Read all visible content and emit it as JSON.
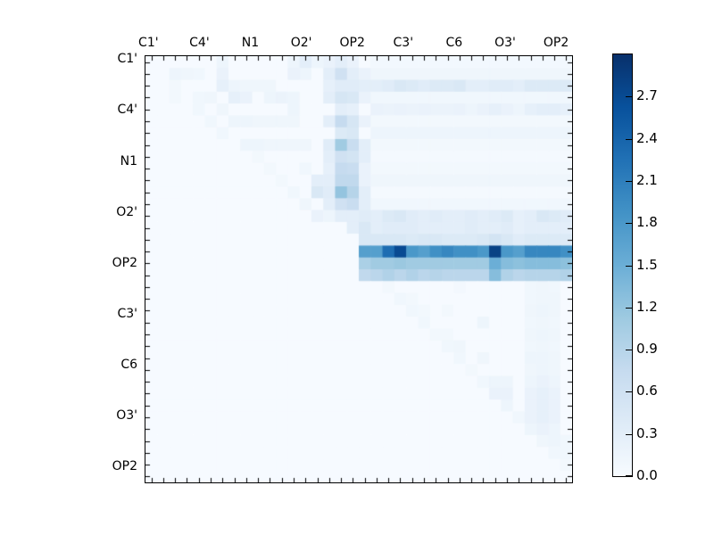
{
  "axes": {
    "x_labels": [
      "C1'",
      "C4'",
      "N1",
      "O2'",
      "OP2",
      "C3'",
      "C6",
      "O3'",
      "OP2"
    ],
    "y_labels": [
      "C1'",
      "C4'",
      "N1",
      "O2'",
      "OP2",
      "C3'",
      "C6",
      "O3'",
      "OP2"
    ],
    "label_positions_cells": [
      0.25,
      4.55,
      8.85,
      13.15,
      17.45,
      21.75,
      26.05,
      30.35,
      34.65
    ]
  },
  "colorbar": {
    "tick_values": [
      0.0,
      0.3,
      0.6,
      0.9,
      1.2,
      1.5,
      1.8,
      2.1,
      2.4,
      2.7
    ],
    "tick_labels": [
      "0.0",
      "0.3",
      "0.6",
      "0.9",
      "1.2",
      "1.5",
      "1.8",
      "2.1",
      "2.4",
      "2.7"
    ],
    "vmin": 0.0,
    "vmax": 3.0,
    "colormap_name": "Blues",
    "colormap_anchors": [
      [
        0.0,
        "#f7fbff"
      ],
      [
        0.125,
        "#deebf7"
      ],
      [
        0.25,
        "#c6dbef"
      ],
      [
        0.375,
        "#9ecae1"
      ],
      [
        0.5,
        "#6baed6"
      ],
      [
        0.625,
        "#4292c6"
      ],
      [
        0.75,
        "#2171b5"
      ],
      [
        0.875,
        "#08519c"
      ],
      [
        1.0,
        "#08306b"
      ]
    ]
  },
  "chart_data": {
    "type": "heatmap",
    "grid_size": 36,
    "vmin": 0.0,
    "vmax": 3.0,
    "colormap": "Blues",
    "axis_tick_labels": [
      "C1'",
      "C4'",
      "N1",
      "O2'",
      "OP2",
      "C3'",
      "C6",
      "O3'",
      "OP2"
    ],
    "note_structure": "upper-triangular matrix; rows/cols 0-35; default background value below",
    "default_value": 0.02,
    "stripes": [
      {
        "row": 0,
        "from": 19,
        "to": 35,
        "value": 0.07
      },
      {
        "row": 1,
        "from": 18,
        "to": 35,
        "value": 0.12
      },
      {
        "row": 2,
        "from": 18,
        "values": [
          0.3,
          0.3,
          0.35,
          0.45,
          0.4,
          0.35,
          0.4,
          0.4,
          0.45,
          0.3,
          0.3,
          0.35,
          0.35,
          0.3,
          0.4,
          0.4,
          0.4,
          0.4
        ]
      },
      {
        "row": 3,
        "from": 19,
        "to": 35,
        "value": 0.1
      },
      {
        "row": 4,
        "from": 19,
        "values": [
          0.2,
          0.18,
          0.2,
          0.18,
          0.2,
          0.18,
          0.18,
          0.2,
          0.15,
          0.2,
          0.25,
          0.2,
          0.15,
          0.25,
          0.3,
          0.3,
          0.25
        ]
      },
      {
        "row": 5,
        "from": 19,
        "to": 35,
        "value": 0.08
      },
      {
        "row": 6,
        "from": 19,
        "to": 35,
        "value": 0.15
      },
      {
        "row": 7,
        "from": 19,
        "to": 35,
        "value": 0.08
      },
      {
        "row": 8,
        "from": 19,
        "to": 35,
        "value": 0.05
      },
      {
        "row": 9,
        "from": 19,
        "to": 35,
        "value": 0.08
      },
      {
        "row": 10,
        "from": 19,
        "to": 35,
        "value": 0.12
      },
      {
        "row": 11,
        "from": 19,
        "to": 35,
        "value": 0.05
      },
      {
        "row": 12,
        "from": 19,
        "to": 35,
        "value": 0.1
      },
      {
        "row": 13,
        "from": 17,
        "values": [
          0.3,
          0.35,
          0.3,
          0.4,
          0.45,
          0.35,
          0.3,
          0.35,
          0.3,
          0.3,
          0.35,
          0.3,
          0.35,
          0.4,
          0.25,
          0.3,
          0.45,
          0.4,
          0.35
        ]
      },
      {
        "row": 14,
        "from": 18,
        "values": [
          0.3,
          0.3,
          0.35,
          0.35,
          0.35,
          0.3,
          0.3,
          0.3,
          0.3,
          0.35,
          0.3,
          0.3,
          0.35,
          0.25,
          0.3,
          0.3,
          0.3,
          0.3
        ]
      },
      {
        "row": 15,
        "from": 18,
        "values": [
          0.45,
          0.45,
          0.45,
          0.45,
          0.4,
          0.45,
          0.45,
          0.4,
          0.4,
          0.4,
          0.45,
          0.55,
          0.45,
          0.35,
          0.4,
          0.4,
          0.4,
          0.4
        ]
      },
      {
        "row": 16,
        "from": 18,
        "values": [
          1.7,
          1.7,
          2.3,
          2.7,
          1.8,
          1.7,
          1.9,
          2.0,
          1.9,
          1.9,
          1.8,
          2.8,
          1.8,
          1.7,
          2.0,
          2.0,
          2.0,
          1.9
        ]
      },
      {
        "row": 17,
        "from": 18,
        "values": [
          1.0,
          1.1,
          1.1,
          1.15,
          1.1,
          1.1,
          1.1,
          1.1,
          1.1,
          1.1,
          1.1,
          1.5,
          1.3,
          1.25,
          1.3,
          1.3,
          1.3,
          1.25
        ]
      },
      {
        "row": 18,
        "from": 18,
        "values": [
          0.8,
          0.85,
          0.95,
          0.85,
          0.95,
          0.85,
          0.9,
          0.85,
          0.85,
          0.85,
          0.85,
          1.3,
          0.95,
          0.85,
          0.9,
          0.9,
          0.9,
          0.95
        ]
      }
    ],
    "cells": [
      [
        0,
        6,
        0.15
      ],
      [
        0,
        12,
        0.15
      ],
      [
        0,
        13,
        0.3
      ],
      [
        0,
        14,
        0.15
      ],
      [
        0,
        15,
        0.2
      ],
      [
        0,
        16,
        0.3
      ],
      [
        0,
        17,
        0.2
      ],
      [
        1,
        2,
        0.15
      ],
      [
        1,
        3,
        0.12
      ],
      [
        1,
        4,
        0.1
      ],
      [
        1,
        6,
        0.2
      ],
      [
        1,
        12,
        0.2
      ],
      [
        1,
        13,
        0.15
      ],
      [
        1,
        15,
        0.3
      ],
      [
        1,
        16,
        0.6
      ],
      [
        1,
        17,
        0.3
      ],
      [
        1,
        18,
        0.2
      ],
      [
        2,
        2,
        0.08
      ],
      [
        2,
        6,
        0.25
      ],
      [
        2,
        7,
        0.15
      ],
      [
        2,
        8,
        0.12
      ],
      [
        2,
        9,
        0.12
      ],
      [
        2,
        10,
        0.12
      ],
      [
        2,
        15,
        0.25
      ],
      [
        2,
        16,
        0.35
      ],
      [
        2,
        17,
        0.35
      ],
      [
        3,
        2,
        0.08
      ],
      [
        3,
        4,
        0.1
      ],
      [
        3,
        5,
        0.12
      ],
      [
        3,
        7,
        0.25
      ],
      [
        3,
        8,
        0.2
      ],
      [
        3,
        10,
        0.15
      ],
      [
        3,
        11,
        0.18
      ],
      [
        3,
        12,
        0.15
      ],
      [
        3,
        15,
        0.3
      ],
      [
        3,
        16,
        0.5
      ],
      [
        3,
        17,
        0.45
      ],
      [
        3,
        18,
        0.2
      ],
      [
        4,
        4,
        0.1
      ],
      [
        4,
        6,
        0.12
      ],
      [
        4,
        12,
        0.15
      ],
      [
        4,
        16,
        0.3
      ],
      [
        4,
        17,
        0.25
      ],
      [
        5,
        5,
        0.1
      ],
      [
        5,
        7,
        0.15
      ],
      [
        5,
        8,
        0.15
      ],
      [
        5,
        9,
        0.12
      ],
      [
        5,
        10,
        0.12
      ],
      [
        5,
        11,
        0.12
      ],
      [
        5,
        12,
        0.12
      ],
      [
        5,
        15,
        0.3
      ],
      [
        5,
        16,
        0.75
      ],
      [
        5,
        17,
        0.5
      ],
      [
        5,
        18,
        0.2
      ],
      [
        6,
        6,
        0.1
      ],
      [
        6,
        16,
        0.4
      ],
      [
        6,
        17,
        0.45
      ],
      [
        7,
        8,
        0.15
      ],
      [
        7,
        9,
        0.15
      ],
      [
        7,
        10,
        0.12
      ],
      [
        7,
        11,
        0.12
      ],
      [
        7,
        12,
        0.12
      ],
      [
        7,
        13,
        0.12
      ],
      [
        7,
        15,
        0.35
      ],
      [
        7,
        16,
        1.1
      ],
      [
        7,
        17,
        0.7
      ],
      [
        7,
        18,
        0.3
      ],
      [
        8,
        9,
        0.08
      ],
      [
        8,
        15,
        0.3
      ],
      [
        8,
        16,
        0.6
      ],
      [
        8,
        17,
        0.55
      ],
      [
        8,
        18,
        0.3
      ],
      [
        9,
        10,
        0.08
      ],
      [
        9,
        13,
        0.1
      ],
      [
        9,
        15,
        0.25
      ],
      [
        9,
        16,
        0.75
      ],
      [
        9,
        17,
        0.7
      ],
      [
        9,
        18,
        0.2
      ],
      [
        10,
        11,
        0.08
      ],
      [
        10,
        14,
        0.3
      ],
      [
        10,
        15,
        0.3
      ],
      [
        10,
        16,
        0.8
      ],
      [
        10,
        17,
        0.8
      ],
      [
        10,
        18,
        0.2
      ],
      [
        11,
        12,
        0.1
      ],
      [
        11,
        14,
        0.45
      ],
      [
        11,
        15,
        0.35
      ],
      [
        11,
        16,
        1.2
      ],
      [
        11,
        17,
        0.9
      ],
      [
        11,
        18,
        0.3
      ],
      [
        12,
        13,
        0.12
      ],
      [
        12,
        15,
        0.3
      ],
      [
        12,
        16,
        0.6
      ],
      [
        12,
        17,
        0.7
      ],
      [
        12,
        18,
        0.3
      ],
      [
        13,
        14,
        0.2
      ],
      [
        13,
        15,
        0.15
      ],
      [
        13,
        16,
        0.3
      ],
      [
        14,
        17,
        0.3
      ],
      [
        14,
        18,
        0.45
      ],
      [
        19,
        20,
        0.08
      ],
      [
        19,
        26,
        0.06
      ],
      [
        19,
        32,
        0.1
      ],
      [
        19,
        33,
        0.12
      ],
      [
        19,
        34,
        0.1
      ],
      [
        20,
        21,
        0.1
      ],
      [
        20,
        22,
        0.08
      ],
      [
        20,
        32,
        0.1
      ],
      [
        20,
        33,
        0.12
      ],
      [
        20,
        34,
        0.12
      ],
      [
        21,
        22,
        0.1
      ],
      [
        21,
        23,
        0.08
      ],
      [
        21,
        25,
        0.08
      ],
      [
        21,
        32,
        0.12
      ],
      [
        21,
        33,
        0.15
      ],
      [
        21,
        34,
        0.12
      ],
      [
        22,
        23,
        0.1
      ],
      [
        22,
        28,
        0.15
      ],
      [
        22,
        32,
        0.1
      ],
      [
        22,
        33,
        0.12
      ],
      [
        22,
        34,
        0.1
      ],
      [
        23,
        24,
        0.08
      ],
      [
        23,
        25,
        0.08
      ],
      [
        23,
        32,
        0.12
      ],
      [
        23,
        33,
        0.15
      ],
      [
        23,
        34,
        0.12
      ],
      [
        24,
        25,
        0.1
      ],
      [
        24,
        26,
        0.12
      ],
      [
        24,
        32,
        0.1
      ],
      [
        24,
        33,
        0.12
      ],
      [
        24,
        34,
        0.1
      ],
      [
        25,
        26,
        0.1
      ],
      [
        25,
        28,
        0.12
      ],
      [
        25,
        32,
        0.15
      ],
      [
        25,
        33,
        0.15
      ],
      [
        25,
        34,
        0.12
      ],
      [
        26,
        27,
        0.08
      ],
      [
        26,
        32,
        0.12
      ],
      [
        26,
        33,
        0.15
      ],
      [
        26,
        34,
        0.12
      ],
      [
        27,
        28,
        0.1
      ],
      [
        27,
        29,
        0.15
      ],
      [
        27,
        30,
        0.15
      ],
      [
        27,
        32,
        0.15
      ],
      [
        27,
        33,
        0.2
      ],
      [
        27,
        34,
        0.15
      ],
      [
        28,
        29,
        0.2
      ],
      [
        28,
        30,
        0.2
      ],
      [
        28,
        32,
        0.2
      ],
      [
        28,
        33,
        0.25
      ],
      [
        28,
        34,
        0.2
      ],
      [
        29,
        30,
        0.15
      ],
      [
        29,
        32,
        0.2
      ],
      [
        29,
        33,
        0.25
      ],
      [
        29,
        34,
        0.2
      ],
      [
        30,
        31,
        0.1
      ],
      [
        30,
        32,
        0.2
      ],
      [
        30,
        33,
        0.25
      ],
      [
        30,
        34,
        0.2
      ],
      [
        31,
        32,
        0.15
      ],
      [
        31,
        33,
        0.2
      ],
      [
        31,
        34,
        0.15
      ],
      [
        32,
        33,
        0.12
      ],
      [
        32,
        34,
        0.15
      ],
      [
        32,
        35,
        0.1
      ],
      [
        33,
        34,
        0.1
      ],
      [
        33,
        35,
        0.1
      ],
      [
        34,
        35,
        0.08
      ]
    ]
  }
}
